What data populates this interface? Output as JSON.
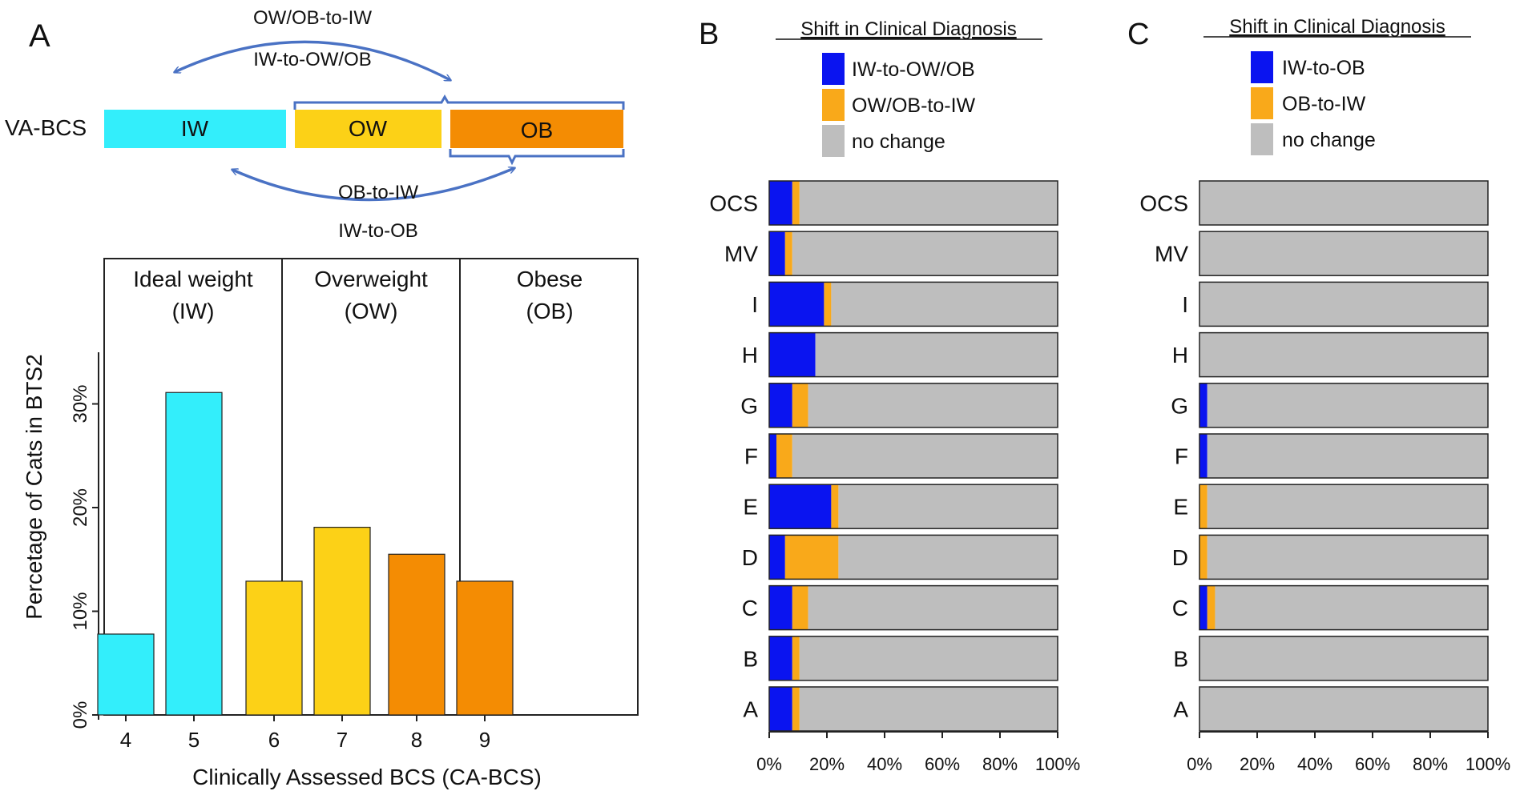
{
  "panels": {
    "a": {
      "letter": "A",
      "scale": {
        "label": "VA-BCS",
        "segments": [
          {
            "label": "IW",
            "color": "#33eefb"
          },
          {
            "label": "OW",
            "color": "#fcd117"
          },
          {
            "label": "OB",
            "color": "#f48c03"
          }
        ]
      },
      "arrows": {
        "top_outer": "OW/OB-to-IW",
        "top_inner": "IW-to-OW/OB",
        "bottom_inner": "OB-to-IW",
        "bottom_outer": "IW-to-OB"
      },
      "groups": [
        {
          "line1": "Ideal weight",
          "line2": "(IW)"
        },
        {
          "line1": "Overweight",
          "line2": "(OW)"
        },
        {
          "line1": "Obese",
          "line2": "(OB)"
        }
      ]
    },
    "b": {
      "letter": "B"
    },
    "c": {
      "letter": "C"
    }
  },
  "colors": {
    "iw": "#33eefb",
    "ow": "#fcd117",
    "ob": "#f48c03",
    "blue": "#0a14f0",
    "orange": "#f9a91a",
    "gray": "#bebebe",
    "arrow": "#4a72c4"
  },
  "chart_data": [
    {
      "id": "a",
      "type": "bar",
      "title": "",
      "xlabel": "Clinically Assessed BCS (CA-BCS)",
      "ylabel": "Percetage of Cats in BTS2",
      "categories": [
        "4",
        "5",
        "6",
        "7",
        "8",
        "9"
      ],
      "values": [
        7.8,
        31.1,
        12.9,
        18.1,
        15.5,
        12.9
      ],
      "bar_colors": [
        "#33eefb",
        "#33eefb",
        "#fcd117",
        "#fcd117",
        "#f48c03",
        "#f48c03"
      ],
      "ylim": [
        0,
        35
      ],
      "yticks": [
        0,
        10,
        20,
        30
      ],
      "ytick_labels": [
        "0%",
        "10%",
        "20%",
        "30%"
      ]
    },
    {
      "id": "b",
      "type": "bar",
      "orientation": "horizontal-stacked",
      "legend_title": "Shift in Clinical Diagnosis",
      "categories": [
        "OCS",
        "MV",
        "I",
        "H",
        "G",
        "F",
        "E",
        "D",
        "C",
        "B",
        "A"
      ],
      "series": [
        {
          "name": "IW-to-OW/OB",
          "color": "#0a14f0",
          "values": [
            8,
            5.5,
            19,
            16,
            8,
            2.5,
            21.5,
            5.5,
            8,
            8,
            8
          ]
        },
        {
          "name": "OW/OB-to-IW",
          "color": "#f9a91a",
          "values": [
            2.5,
            2.5,
            2.5,
            0,
            5.5,
            5.5,
            2.5,
            18.5,
            5.5,
            2.5,
            2.5
          ]
        },
        {
          "name": "no change",
          "color": "#bebebe",
          "values": [
            89.5,
            92,
            78.5,
            84,
            86.5,
            92,
            76,
            76,
            86.5,
            89.5,
            89.5
          ]
        }
      ],
      "xlim": [
        0,
        100
      ],
      "xticks": [
        0,
        20,
        40,
        60,
        80,
        100
      ],
      "xtick_labels": [
        "0%",
        "20%",
        "40%",
        "60%",
        "80%",
        "100%"
      ]
    },
    {
      "id": "c",
      "type": "bar",
      "orientation": "horizontal-stacked",
      "legend_title": "Shift in Clinical Diagnosis",
      "categories": [
        "OCS",
        "MV",
        "I",
        "H",
        "G",
        "F",
        "E",
        "D",
        "C",
        "B",
        "A"
      ],
      "series": [
        {
          "name": "IW-to-OB",
          "color": "#0a14f0",
          "values": [
            0,
            0,
            0,
            0,
            2.7,
            2.7,
            0,
            0,
            2.7,
            0,
            0
          ]
        },
        {
          "name": "OB-to-IW",
          "color": "#f9a91a",
          "values": [
            0,
            0,
            0,
            0,
            0,
            0,
            2.7,
            2.7,
            2.7,
            0,
            0
          ]
        },
        {
          "name": "no change",
          "color": "#bebebe",
          "values": [
            100,
            100,
            100,
            100,
            97.3,
            97.3,
            97.3,
            97.3,
            94.6,
            100,
            100
          ]
        }
      ],
      "xlim": [
        0,
        100
      ],
      "xticks": [
        0,
        20,
        40,
        60,
        80,
        100
      ],
      "xtick_labels": [
        "0%",
        "20%",
        "40%",
        "60%",
        "80%",
        "100%"
      ]
    }
  ]
}
